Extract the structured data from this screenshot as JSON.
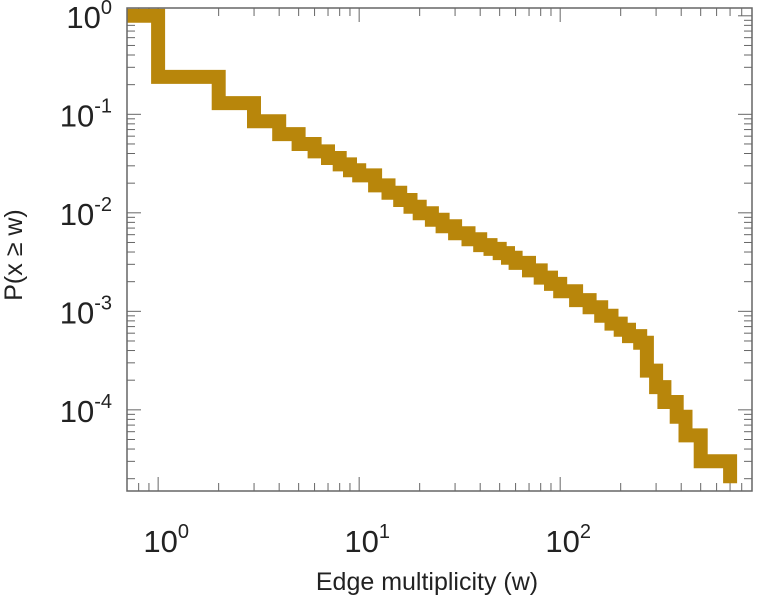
{
  "chart_data": {
    "type": "line",
    "style": "step",
    "xscale": "log",
    "yscale": "log",
    "xlim": [
      0.7,
      900
    ],
    "ylim": [
      1.5e-05,
      1.2
    ],
    "xlabel": "Edge multiplicity (w)",
    "ylabel": "P(x ≥ w)",
    "xticks": [
      {
        "value": 1,
        "base": "10",
        "exp": "0"
      },
      {
        "value": 10,
        "base": "10",
        "exp": "1"
      },
      {
        "value": 100,
        "base": "10",
        "exp": "2"
      }
    ],
    "yticks": [
      {
        "value": 1,
        "base": "10",
        "exp": "0"
      },
      {
        "value": 0.1,
        "base": "10",
        "exp": "-1"
      },
      {
        "value": 0.01,
        "base": "10",
        "exp": "-2"
      },
      {
        "value": 0.001,
        "base": "10",
        "exp": "-3"
      },
      {
        "value": 0.0001,
        "base": "10",
        "exp": "-4"
      }
    ],
    "grid": false,
    "series": [
      {
        "color": "#b8860b",
        "x": [
          0.7,
          1,
          2,
          3,
          4,
          5,
          6,
          7,
          8,
          9,
          10,
          12,
          14,
          16,
          18,
          20,
          23,
          26,
          30,
          35,
          40,
          45,
          50,
          55,
          60,
          70,
          80,
          90,
          100,
          120,
          140,
          160,
          180,
          200,
          220,
          250,
          270,
          300,
          330,
          380,
          420,
          500,
          700
        ],
        "y": [
          1,
          0.24,
          0.13,
          0.085,
          0.063,
          0.05,
          0.042,
          0.036,
          0.031,
          0.027,
          0.024,
          0.019,
          0.016,
          0.0135,
          0.0115,
          0.0099,
          0.0085,
          0.0073,
          0.0062,
          0.0054,
          0.0047,
          0.0043,
          0.0039,
          0.0035,
          0.0031,
          0.0026,
          0.0022,
          0.0019,
          0.0016,
          0.0013,
          0.0011,
          0.0009,
          0.00075,
          0.00065,
          0.00056,
          0.00048,
          0.00025,
          0.00017,
          0.00012,
          8.5e-05,
          5.5e-05,
          3e-05,
          1.8e-05
        ]
      }
    ]
  }
}
